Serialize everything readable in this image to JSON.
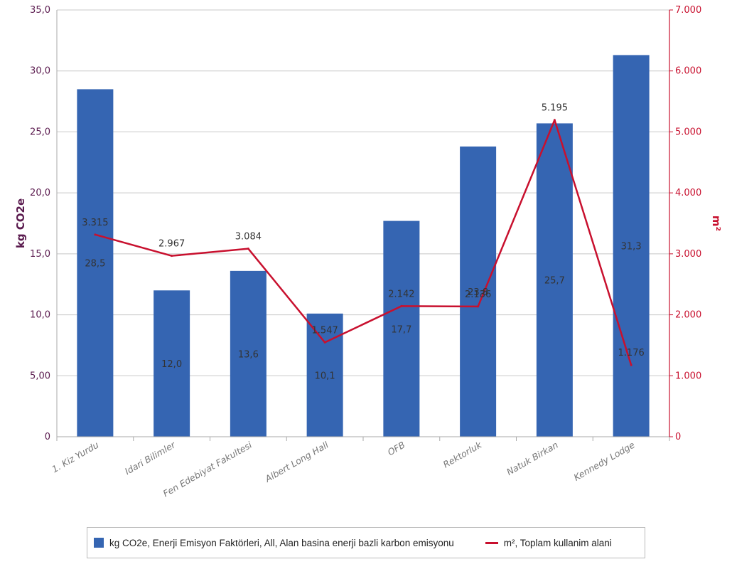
{
  "chart_data": {
    "type": "bar+line",
    "categories": [
      "1. Kiz Yurdu",
      "Idari Bilimler",
      "Fen Edebiyat Fakultesi",
      "Albert Long Hall",
      "OFB",
      "Rektorluk",
      "Natuk Birkan",
      "Kennedy Lodge"
    ],
    "series": [
      {
        "name": "kg CO2e, Enerji Emisyon Faktörleri, All, Alan basina enerji bazli karbon emisyonu",
        "type": "bar",
        "axis": "left",
        "values": [
          28.5,
          12.0,
          13.6,
          10.1,
          17.7,
          23.8,
          25.7,
          31.3
        ],
        "labels": [
          "28,5",
          "12,0",
          "13,6",
          "10,1",
          "17,7",
          "23,8",
          "25,7",
          "31,3"
        ]
      },
      {
        "name": "m², Toplam kullanim alani",
        "type": "line",
        "axis": "right",
        "values": [
          3315,
          2967,
          3084,
          1547,
          2142,
          2136,
          5195,
          1176
        ],
        "labels": [
          "3.315",
          "2.967",
          "3.084",
          "1.547",
          "2.142",
          "2.136",
          "5.195",
          "1.176"
        ]
      }
    ],
    "y_left": {
      "label": "kg CO2e",
      "min": 0,
      "max": 35,
      "ticks": [
        0,
        5,
        10,
        15,
        20,
        25,
        30,
        35
      ],
      "tick_labels": [
        "0",
        "5,00",
        "10,0",
        "15,0",
        "20,0",
        "25,0",
        "30,0",
        "35,0"
      ]
    },
    "y_right": {
      "label": "m²",
      "min": 0,
      "max": 7000,
      "ticks": [
        0,
        1000,
        2000,
        3000,
        4000,
        5000,
        6000,
        7000
      ],
      "tick_labels": [
        "0",
        "1.000",
        "2.000",
        "3.000",
        "4.000",
        "5.000",
        "6.000",
        "7.000"
      ]
    },
    "grid": true,
    "legend_position": "bottom"
  },
  "colors": {
    "bar": "#3565b2",
    "line": "#c8102e",
    "left_axis_text": "#5a1a4e",
    "right_axis_text": "#c8102e",
    "grid": "#c8c8c8",
    "category_text": "#777777"
  }
}
